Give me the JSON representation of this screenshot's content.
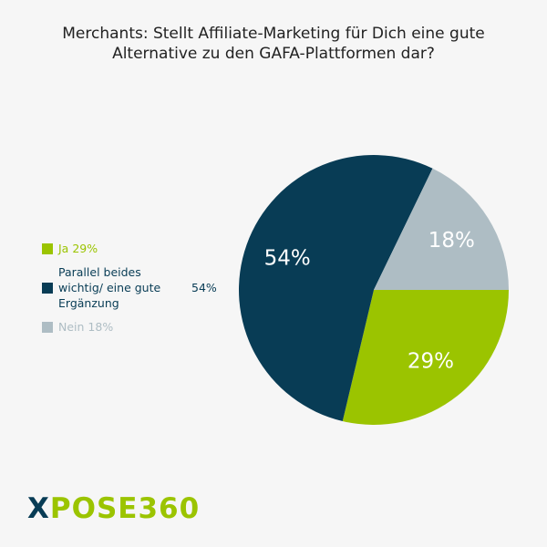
{
  "chart_data": {
    "type": "pie",
    "title": "Merchants: Stellt Affiliate-Marketing für Dich eine gute Alternative zu den GAFA-Plattformen dar?",
    "categories": [
      "Ja 29%",
      "Parallel beides wichtig/ eine gute Ergänzung",
      "Nein 18%"
    ],
    "values": [
      29,
      54,
      18
    ],
    "value_labels": [
      "29%",
      "54%",
      "18%"
    ],
    "colors": [
      "#9bc400",
      "#083c55",
      "#aebdc4"
    ],
    "legend": "left"
  },
  "logo": {
    "mark": "X",
    "text": "POSE360"
  }
}
